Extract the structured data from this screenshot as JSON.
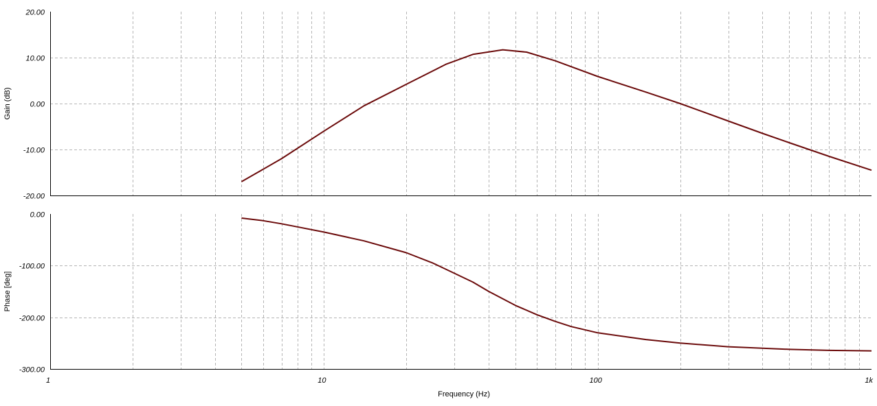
{
  "chart_data": [
    {
      "type": "line",
      "ylabel": "Gain (dB)",
      "xscale": "log",
      "xlim": [
        1,
        1000
      ],
      "ylim": [
        -20,
        20
      ],
      "yticks": [
        "20.00",
        "10.00",
        "0.00",
        "-10.00",
        "-20.00"
      ],
      "ytick_values": [
        20,
        10,
        0,
        -10,
        -20
      ],
      "grid": true,
      "series": [
        {
          "color": "#6b0a0a",
          "x": [
            5,
            7,
            10,
            14,
            20,
            28,
            35,
            45,
            55,
            70,
            100,
            150,
            200,
            300,
            400,
            500,
            700,
            1000
          ],
          "y": [
            -17.0,
            -12.0,
            -6.0,
            -0.5,
            4.2,
            8.6,
            10.7,
            11.7,
            11.2,
            9.3,
            5.9,
            2.5,
            0.0,
            -3.8,
            -6.5,
            -8.5,
            -11.5,
            -14.5
          ]
        }
      ]
    },
    {
      "type": "line",
      "xlabel": "Frequency (Hz)",
      "ylabel": "Phase [deg]",
      "xscale": "log",
      "xlim": [
        1,
        1000
      ],
      "ylim": [
        -300,
        0
      ],
      "xticks": [
        "1",
        "10",
        "100",
        "1k"
      ],
      "xtick_values": [
        1,
        10,
        100,
        1000
      ],
      "yticks": [
        "0.00",
        "-100.00",
        "-200.00",
        "-300.00"
      ],
      "ytick_values": [
        0,
        -100,
        -200,
        -300
      ],
      "grid": true,
      "series": [
        {
          "color": "#6b0a0a",
          "x": [
            5,
            6,
            7,
            8,
            10,
            14,
            20,
            25,
            30,
            35,
            40,
            50,
            60,
            70,
            80,
            100,
            150,
            200,
            300,
            500,
            700,
            1000
          ],
          "y": [
            -8,
            -13,
            -19,
            -25,
            -35,
            -52,
            -75,
            -95,
            -115,
            -132,
            -150,
            -177,
            -195,
            -208,
            -218,
            -230,
            -243,
            -250,
            -257,
            -262,
            -264,
            -265
          ]
        }
      ]
    }
  ]
}
